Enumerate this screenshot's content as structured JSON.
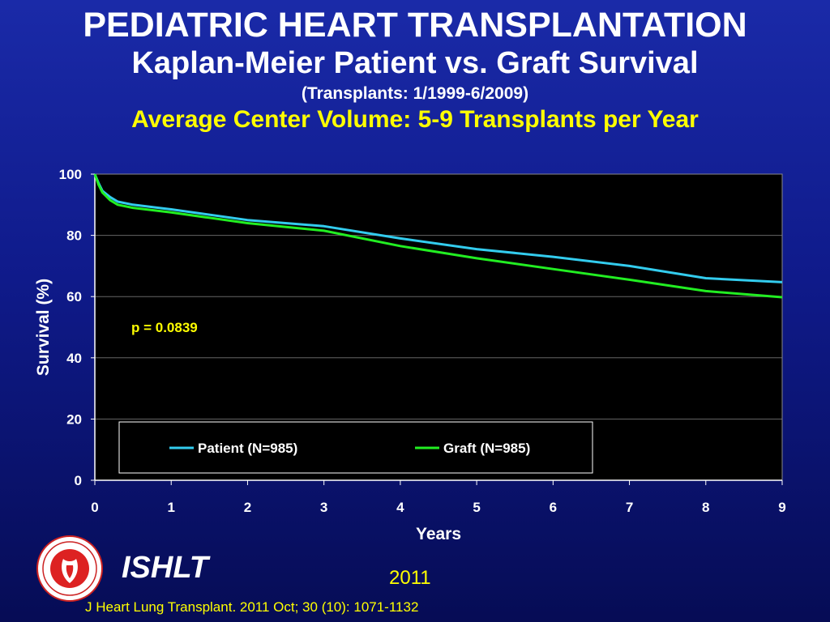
{
  "header": {
    "title": "PEDIATRIC HEART TRANSPLANTATION",
    "subtitle": "Kaplan-Meier Patient vs. Graft Survival",
    "date_range": "(Transplants: 1/1999-6/2009)",
    "highlight": "Average Center Volume: 5-9 Transplants per Year"
  },
  "chart_data": {
    "type": "line",
    "xlabel": "Years",
    "ylabel": "Survival (%)",
    "xlim": [
      0,
      9
    ],
    "ylim": [
      0,
      100
    ],
    "x_ticks": [
      0,
      1,
      2,
      3,
      4,
      5,
      6,
      7,
      8,
      9
    ],
    "y_ticks": [
      0,
      20,
      40,
      60,
      80,
      100
    ],
    "grid": "horizontal",
    "background": "#000000",
    "annotation": "p = 0.0839",
    "legend_position": "bottom-left inside",
    "series": [
      {
        "name": "Patient (N=985)",
        "color": "#33ccee",
        "x": [
          0,
          0.05,
          0.1,
          0.2,
          0.3,
          0.5,
          1,
          2,
          3,
          4,
          5,
          6,
          7,
          8,
          9
        ],
        "y": [
          100,
          97,
          94.5,
          92.5,
          91,
          90,
          88.5,
          85,
          83,
          79,
          75.5,
          73,
          70,
          66,
          64.7
        ]
      },
      {
        "name": "Graft (N=985)",
        "color": "#22ee22",
        "x": [
          0,
          0.05,
          0.1,
          0.2,
          0.3,
          0.5,
          1,
          2,
          3,
          4,
          5,
          6,
          7,
          8,
          9
        ],
        "y": [
          100,
          96.5,
          94,
          91.5,
          90,
          89,
          87.5,
          84,
          81.5,
          76.5,
          72.5,
          69,
          65.5,
          61.8,
          59.8
        ]
      }
    ]
  },
  "footer": {
    "logo_label": "ISHLT",
    "year": "2011",
    "citation": "J Heart Lung Transplant. 2011 Oct; 30 (10): 1071-1132"
  }
}
